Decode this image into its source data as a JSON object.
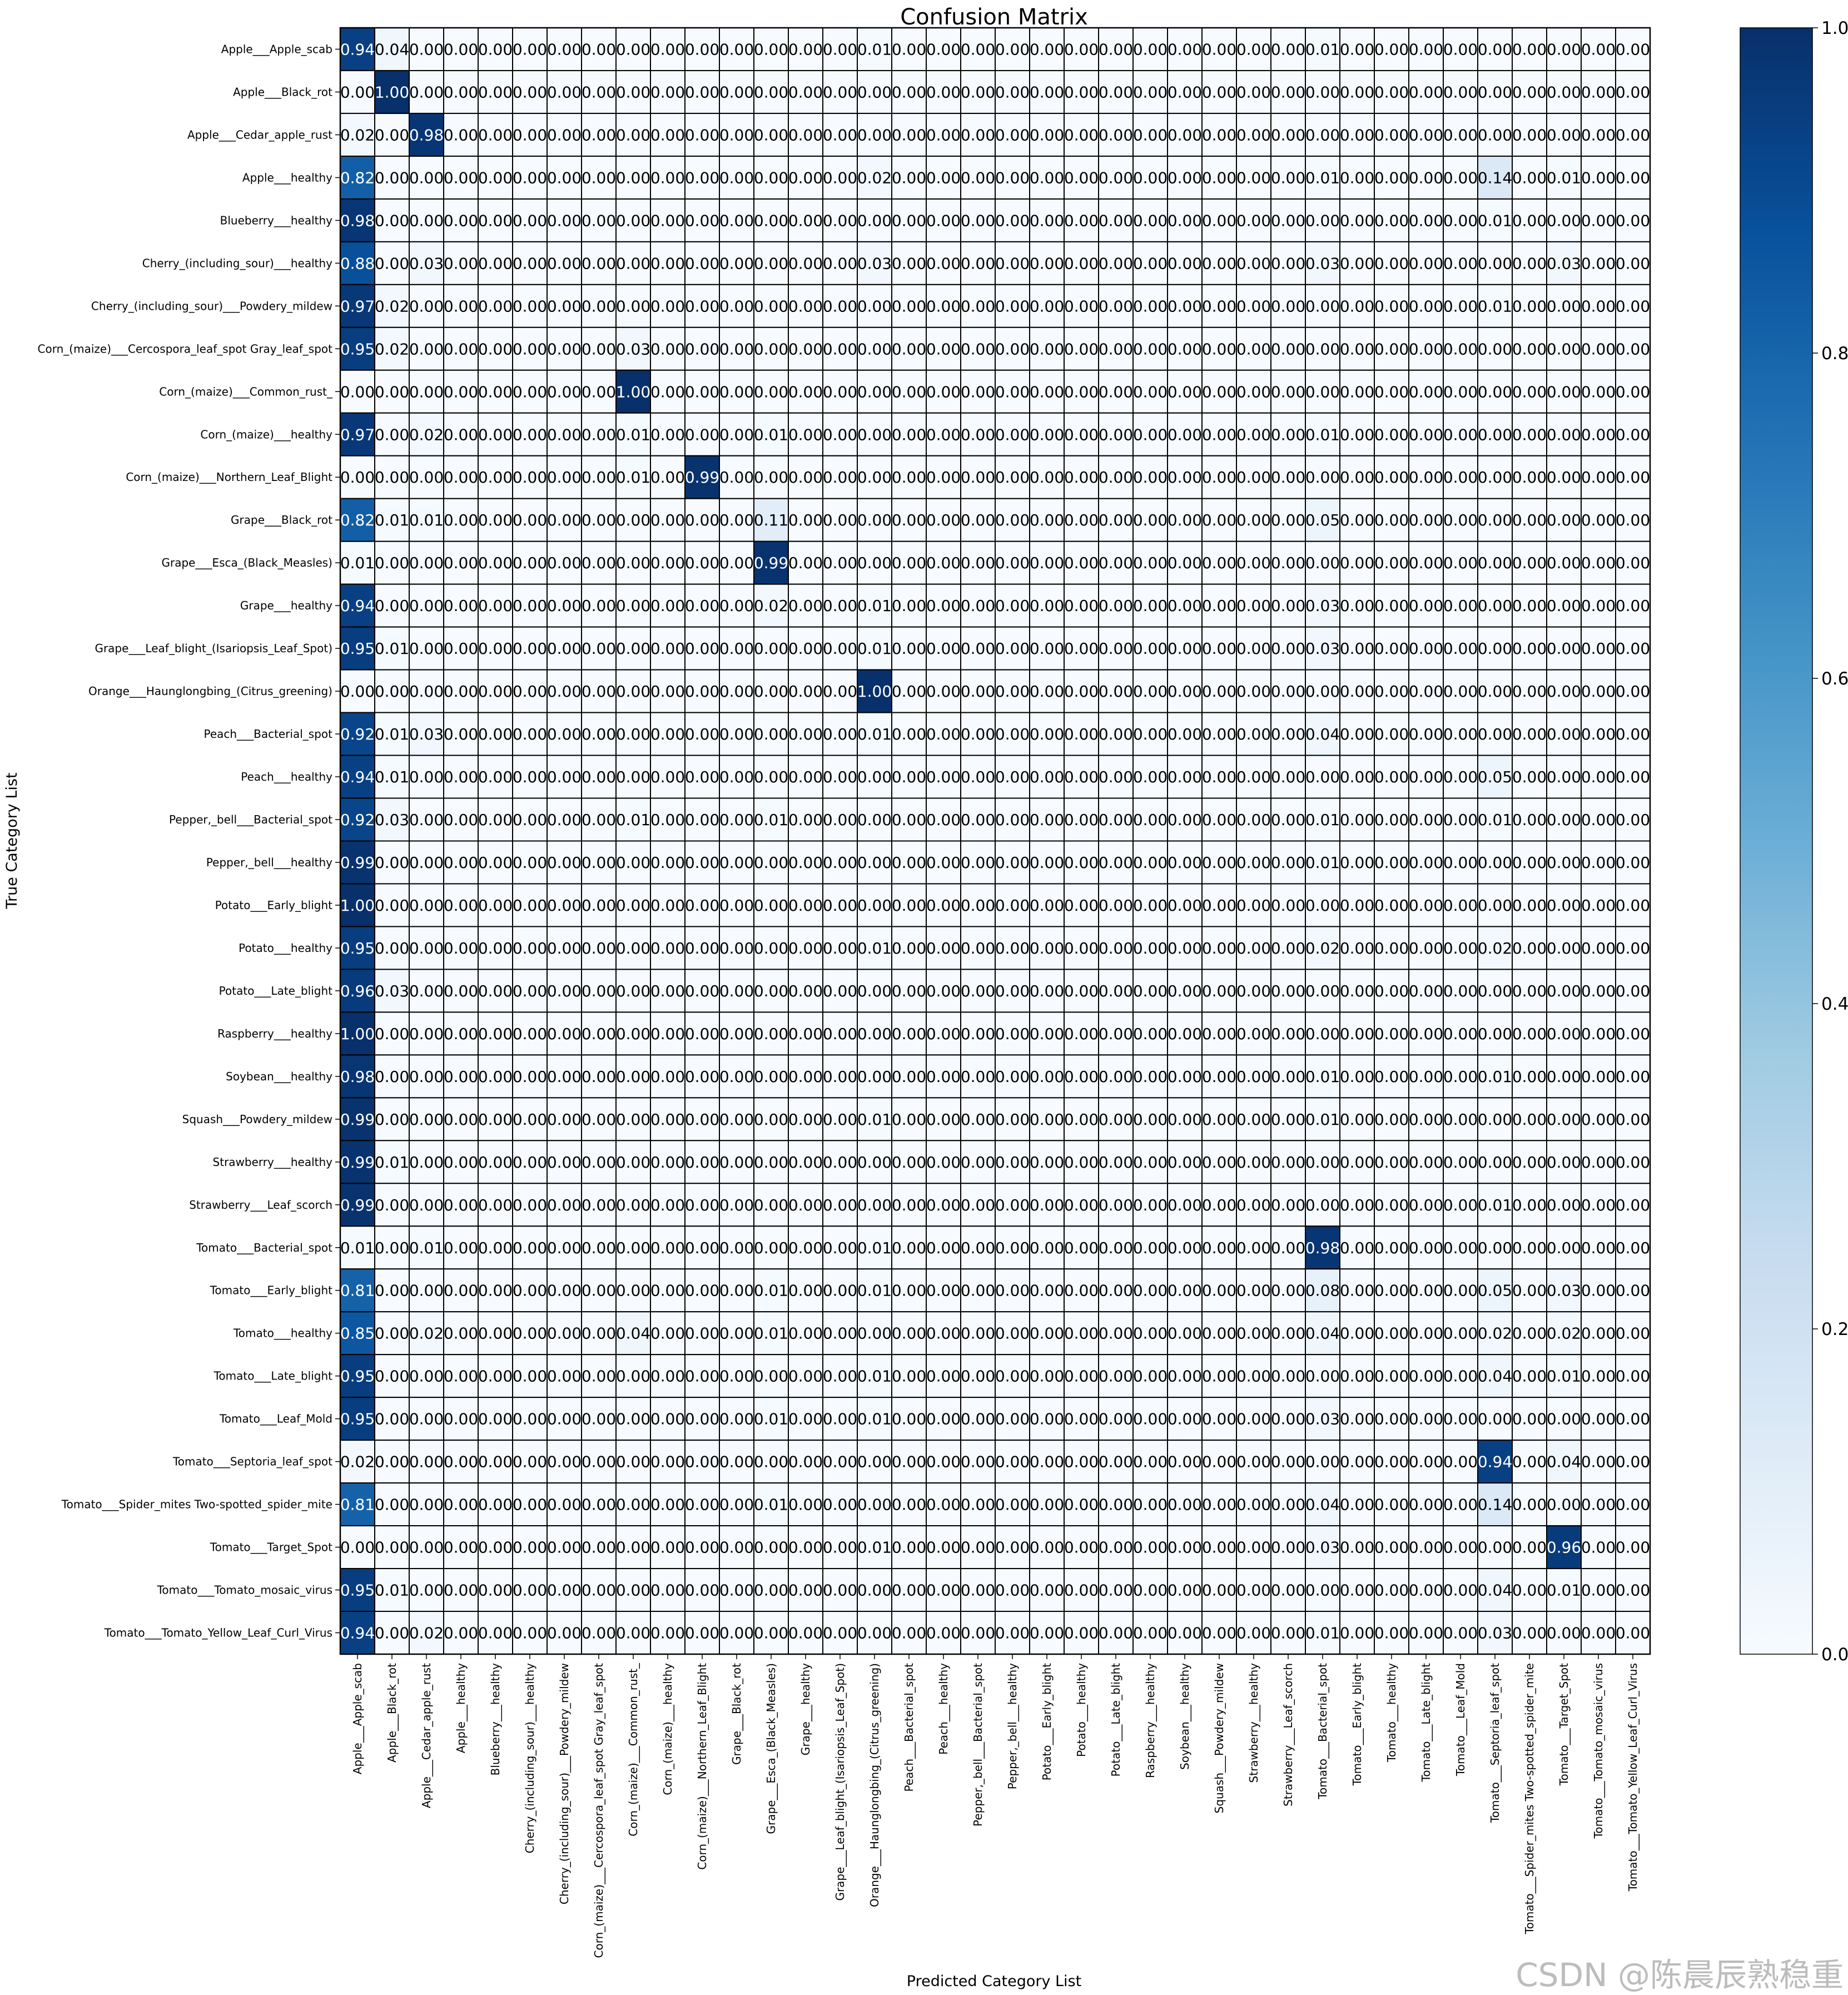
{
  "chart_data": {
    "type": "heatmap",
    "title": "Confusion Matrix",
    "xlabel": "Predicted Category List",
    "ylabel": "True Category List",
    "value_format": "0.00",
    "categories": [
      "Apple___Apple_scab",
      "Apple___Black_rot",
      "Apple___Cedar_apple_rust",
      "Apple___healthy",
      "Blueberry___healthy",
      "Cherry_(including_sour)___healthy",
      "Cherry_(including_sour)___Powdery_mildew",
      "Corn_(maize)___Cercospora_leaf_spot Gray_leaf_spot",
      "Corn_(maize)___Common_rust_",
      "Corn_(maize)___healthy",
      "Corn_(maize)___Northern_Leaf_Blight",
      "Grape___Black_rot",
      "Grape___Esca_(Black_Measles)",
      "Grape___healthy",
      "Grape___Leaf_blight_(Isariopsis_Leaf_Spot)",
      "Orange___Haunglongbing_(Citrus_greening)",
      "Peach___Bacterial_spot",
      "Peach___healthy",
      "Pepper,_bell___Bacterial_spot",
      "Pepper,_bell___healthy",
      "Potato___Early_blight",
      "Potato___healthy",
      "Potato___Late_blight",
      "Raspberry___healthy",
      "Soybean___healthy",
      "Squash___Powdery_mildew",
      "Strawberry___healthy",
      "Strawberry___Leaf_scorch",
      "Tomato___Bacterial_spot",
      "Tomato___Early_blight",
      "Tomato___healthy",
      "Tomato___Late_blight",
      "Tomato___Leaf_Mold",
      "Tomato___Septoria_leaf_spot",
      "Tomato___Spider_mites Two-spotted_spider_mite",
      "Tomato___Target_Spot",
      "Tomato___Tomato_mosaic_virus",
      "Tomato___Tomato_Yellow_Leaf_Curl_Virus"
    ],
    "nonzero_cells": [
      [
        [
          0,
          0.94
        ],
        [
          1,
          0.04
        ],
        [
          15,
          0.01
        ],
        [
          28,
          0.01
        ]
      ],
      [
        [
          1,
          1.0
        ]
      ],
      [
        [
          0,
          0.02
        ],
        [
          2,
          0.98
        ]
      ],
      [
        [
          0,
          0.82
        ],
        [
          15,
          0.02
        ],
        [
          28,
          0.01
        ],
        [
          33,
          0.14
        ],
        [
          35,
          0.01
        ]
      ],
      [
        [
          0,
          0.98
        ],
        [
          33,
          0.01
        ]
      ],
      [
        [
          0,
          0.88
        ],
        [
          2,
          0.03
        ],
        [
          15,
          0.03
        ],
        [
          28,
          0.03
        ],
        [
          35,
          0.03
        ]
      ],
      [
        [
          0,
          0.97
        ],
        [
          1,
          0.02
        ],
        [
          33,
          0.01
        ]
      ],
      [
        [
          0,
          0.95
        ],
        [
          1,
          0.02
        ],
        [
          8,
          0.03
        ]
      ],
      [
        [
          8,
          1.0
        ]
      ],
      [
        [
          0,
          0.97
        ],
        [
          2,
          0.02
        ],
        [
          8,
          0.01
        ],
        [
          12,
          0.01
        ],
        [
          28,
          0.01
        ]
      ],
      [
        [
          8,
          0.01
        ],
        [
          10,
          0.99
        ]
      ],
      [
        [
          0,
          0.82
        ],
        [
          1,
          0.01
        ],
        [
          2,
          0.01
        ],
        [
          12,
          0.11
        ],
        [
          28,
          0.05
        ]
      ],
      [
        [
          0,
          0.01
        ],
        [
          12,
          0.99
        ]
      ],
      [
        [
          0,
          0.94
        ],
        [
          12,
          0.02
        ],
        [
          15,
          0.01
        ],
        [
          28,
          0.03
        ]
      ],
      [
        [
          0,
          0.95
        ],
        [
          1,
          0.01
        ],
        [
          15,
          0.01
        ],
        [
          28,
          0.03
        ]
      ],
      [
        [
          15,
          1.0
        ]
      ],
      [
        [
          0,
          0.92
        ],
        [
          1,
          0.01
        ],
        [
          2,
          0.03
        ],
        [
          15,
          0.01
        ],
        [
          28,
          0.04
        ]
      ],
      [
        [
          0,
          0.94
        ],
        [
          1,
          0.01
        ],
        [
          33,
          0.05
        ]
      ],
      [
        [
          0,
          0.92
        ],
        [
          1,
          0.03
        ],
        [
          8,
          0.01
        ],
        [
          12,
          0.01
        ],
        [
          28,
          0.01
        ],
        [
          33,
          0.01
        ]
      ],
      [
        [
          0,
          0.99
        ],
        [
          28,
          0.01
        ]
      ],
      [
        [
          0,
          1.0
        ]
      ],
      [
        [
          0,
          0.95
        ],
        [
          15,
          0.01
        ],
        [
          28,
          0.02
        ],
        [
          33,
          0.02
        ]
      ],
      [
        [
          0,
          0.96
        ],
        [
          1,
          0.03
        ]
      ],
      [
        [
          0,
          1.0
        ]
      ],
      [
        [
          0,
          0.98
        ],
        [
          28,
          0.01
        ],
        [
          33,
          0.01
        ]
      ],
      [
        [
          0,
          0.99
        ],
        [
          15,
          0.01
        ],
        [
          28,
          0.01
        ]
      ],
      [
        [
          0,
          0.99
        ],
        [
          1,
          0.01
        ]
      ],
      [
        [
          0,
          0.99
        ],
        [
          33,
          0.01
        ]
      ],
      [
        [
          0,
          0.01
        ],
        [
          2,
          0.01
        ],
        [
          15,
          0.01
        ],
        [
          28,
          0.98
        ]
      ],
      [
        [
          0,
          0.81
        ],
        [
          12,
          0.01
        ],
        [
          15,
          0.01
        ],
        [
          28,
          0.08
        ],
        [
          33,
          0.05
        ],
        [
          35,
          0.03
        ]
      ],
      [
        [
          0,
          0.85
        ],
        [
          2,
          0.02
        ],
        [
          8,
          0.04
        ],
        [
          12,
          0.01
        ],
        [
          28,
          0.04
        ],
        [
          33,
          0.02
        ],
        [
          35,
          0.02
        ]
      ],
      [
        [
          0,
          0.95
        ],
        [
          15,
          0.01
        ],
        [
          33,
          0.04
        ],
        [
          35,
          0.01
        ]
      ],
      [
        [
          0,
          0.95
        ],
        [
          12,
          0.01
        ],
        [
          15,
          0.01
        ],
        [
          28,
          0.03
        ]
      ],
      [
        [
          0,
          0.02
        ],
        [
          33,
          0.94
        ],
        [
          35,
          0.04
        ]
      ],
      [
        [
          0,
          0.81
        ],
        [
          12,
          0.01
        ],
        [
          28,
          0.04
        ],
        [
          33,
          0.14
        ]
      ],
      [
        [
          15,
          0.01
        ],
        [
          28,
          0.03
        ],
        [
          35,
          0.96
        ]
      ],
      [
        [
          0,
          0.95
        ],
        [
          1,
          0.01
        ],
        [
          33,
          0.04
        ],
        [
          35,
          0.01
        ]
      ],
      [
        [
          0,
          0.94
        ],
        [
          2,
          0.02
        ],
        [
          28,
          0.01
        ],
        [
          33,
          0.03
        ]
      ]
    ],
    "colorbar": {
      "range": [
        0.0,
        1.0
      ],
      "ticks": [
        "0.0",
        "0.2",
        "0.4",
        "0.6",
        "0.8",
        "1.0"
      ]
    },
    "colormap": [
      "#f7fbff",
      "#deebf7",
      "#c6dbef",
      "#9ecae1",
      "#6baed6",
      "#4292c6",
      "#2171b5",
      "#08519c",
      "#08306b"
    ],
    "grid": true
  },
  "watermark": "CSDN @陈晨辰熟稳重"
}
